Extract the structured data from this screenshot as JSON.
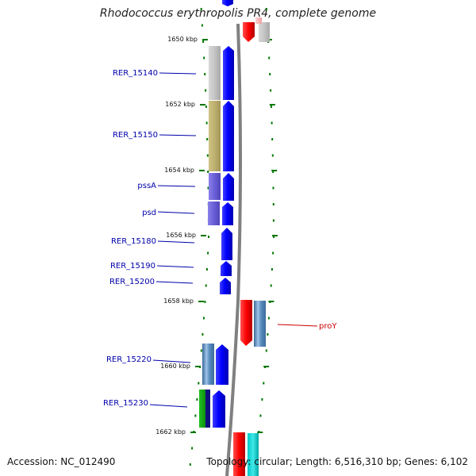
{
  "title": "Rhodococcus erythropolis PR4, complete genome",
  "footer": {
    "accession": "Accession: NC_012490",
    "topology": "Topology: circular; Length: 6,516,310 bp; Genes: 6,102"
  },
  "colors": {
    "forward_gene": "#0000ff",
    "reverse_gene": "#ff0000",
    "label_forward": "#0000aa",
    "label_reverse": "#cc0000",
    "tick": "#007700",
    "backbone": "#808080"
  },
  "ticks": [
    {
      "label": "1650 kbp"
    },
    {
      "label": "1652 kbp"
    },
    {
      "label": "1654 kbp"
    },
    {
      "label": "1656 kbp"
    },
    {
      "label": "1658 kbp"
    },
    {
      "label": "1660 kbp"
    },
    {
      "label": "1662 kbp"
    }
  ],
  "gene_labels": [
    {
      "name": "RER_15140",
      "strand": "+"
    },
    {
      "name": "RER_15150",
      "strand": "+"
    },
    {
      "name": "pssA",
      "strand": "+"
    },
    {
      "name": "psd",
      "strand": "+"
    },
    {
      "name": "RER_15180",
      "strand": "+"
    },
    {
      "name": "RER_15190",
      "strand": "+"
    },
    {
      "name": "RER_15200",
      "strand": "+"
    },
    {
      "name": "proY",
      "strand": "-"
    },
    {
      "name": "RER_15220",
      "strand": "+"
    },
    {
      "name": "RER_15230",
      "strand": "+"
    }
  ]
}
